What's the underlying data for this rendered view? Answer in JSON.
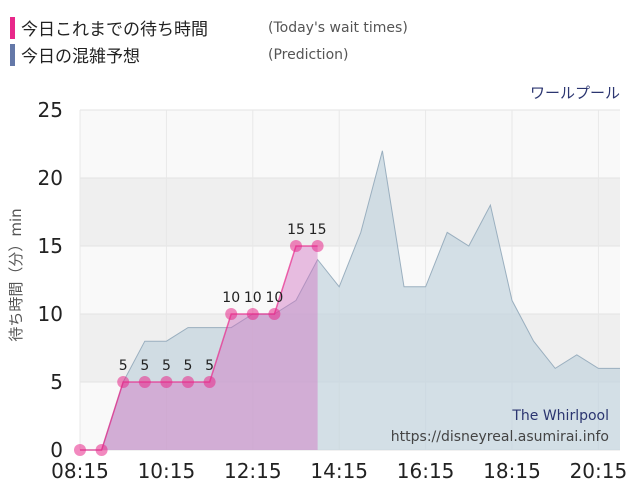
{
  "legend": [
    {
      "label": "今日これまでの待ち時間",
      "label_en": "(Today's wait times)",
      "color": "#e8288a"
    },
    {
      "label": "今日の混雑予想",
      "label_en": "(Prediction)",
      "color": "#6478a8"
    }
  ],
  "attraction_name": "ワールプール",
  "attraction_name_en": "The Whirlpool",
  "source_url": "https://disneyreal.asumirai.info",
  "chart_data": {
    "type": "area",
    "ylabel": "待ち時間（分）min",
    "ylim": [
      0,
      25
    ],
    "y_ticks": [
      0,
      5,
      10,
      15,
      20,
      25
    ],
    "x_ticks": [
      "08:15",
      "10:15",
      "12:15",
      "14:15",
      "16:15",
      "18:15",
      "20:15"
    ],
    "x_range": [
      "08:15",
      "20:45"
    ],
    "colors": {
      "today": "#e8288a",
      "today_fill": "#d070c0",
      "prediction_fill": "#c5d5df",
      "prediction_line": "#9aafbf"
    },
    "series": [
      {
        "name": "今日の混雑予想",
        "points": [
          [
            "08:15",
            0
          ],
          [
            "08:45",
            0
          ],
          [
            "09:15",
            5
          ],
          [
            "09:45",
            8
          ],
          [
            "10:15",
            8
          ],
          [
            "10:45",
            9
          ],
          [
            "11:15",
            9
          ],
          [
            "11:45",
            9
          ],
          [
            "12:15",
            10
          ],
          [
            "12:45",
            10
          ],
          [
            "13:15",
            11
          ],
          [
            "13:45",
            14
          ],
          [
            "14:15",
            12
          ],
          [
            "14:45",
            16
          ],
          [
            "15:15",
            22
          ],
          [
            "15:45",
            12
          ],
          [
            "16:15",
            12
          ],
          [
            "16:45",
            16
          ],
          [
            "17:15",
            15
          ],
          [
            "17:45",
            18
          ],
          [
            "18:15",
            11
          ],
          [
            "18:45",
            8
          ],
          [
            "19:15",
            6
          ],
          [
            "19:45",
            7
          ],
          [
            "20:15",
            6
          ],
          [
            "20:45",
            6
          ]
        ]
      },
      {
        "name": "今日これまでの待ち時間",
        "points": [
          [
            "08:15",
            0
          ],
          [
            "08:45",
            0
          ],
          [
            "09:15",
            5
          ],
          [
            "09:45",
            5
          ],
          [
            "10:15",
            5
          ],
          [
            "10:45",
            5
          ],
          [
            "11:15",
            5
          ],
          [
            "11:45",
            10
          ],
          [
            "12:15",
            10
          ],
          [
            "12:45",
            10
          ],
          [
            "13:15",
            15
          ],
          [
            "13:45",
            15
          ]
        ],
        "data_labels": [
          "",
          "",
          "5",
          "5",
          "5",
          "5",
          "5",
          "10",
          "10",
          "10",
          "15",
          "15"
        ]
      }
    ]
  }
}
